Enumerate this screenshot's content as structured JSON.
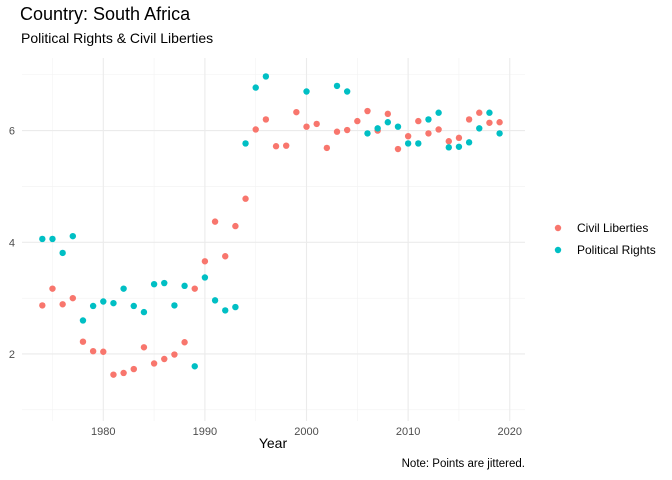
{
  "chart_data": {
    "type": "scatter",
    "title": "Country: South Africa",
    "subtitle": "Political Rights & Civil Liberties",
    "xlabel": "Year",
    "ylabel": "",
    "caption": "Note: Points are jittered.",
    "xlim": [
      1972,
      2021.5
    ],
    "ylim": [
      0.8,
      7.3
    ],
    "x_ticks": [
      1980,
      1990,
      2000,
      2010,
      2020
    ],
    "y_ticks": [
      2,
      4,
      6
    ],
    "grid": true,
    "legend_position": "right",
    "series": [
      {
        "name": "Civil Liberties",
        "color": "#F8766D",
        "points": [
          [
            1974,
            2.87
          ],
          [
            1975,
            3.17
          ],
          [
            1976,
            2.89
          ],
          [
            1977,
            3.0
          ],
          [
            1978,
            2.22
          ],
          [
            1979,
            2.05
          ],
          [
            1980,
            2.04
          ],
          [
            1981,
            1.63
          ],
          [
            1982,
            1.66
          ],
          [
            1983,
            1.73
          ],
          [
            1984,
            2.12
          ],
          [
            1985,
            1.83
          ],
          [
            1986,
            1.91
          ],
          [
            1987,
            1.99
          ],
          [
            1988,
            2.21
          ],
          [
            1989,
            3.17
          ],
          [
            1990,
            3.66
          ],
          [
            1991,
            4.37
          ],
          [
            1992,
            3.75
          ],
          [
            1993,
            4.29
          ],
          [
            1994,
            4.78
          ],
          [
            1995,
            6.02
          ],
          [
            1996,
            6.2
          ],
          [
            1997,
            5.72
          ],
          [
            1998,
            5.73
          ],
          [
            1999,
            6.33
          ],
          [
            2000,
            6.07
          ],
          [
            2001,
            6.12
          ],
          [
            2002,
            5.69
          ],
          [
            2003,
            5.98
          ],
          [
            2004,
            6.01
          ],
          [
            2005,
            6.17
          ],
          [
            2006,
            6.35
          ],
          [
            2007,
            6.0
          ],
          [
            2008,
            6.3
          ],
          [
            2009,
            5.67
          ],
          [
            2010,
            5.9
          ],
          [
            2011,
            6.17
          ],
          [
            2012,
            5.95
          ],
          [
            2013,
            6.02
          ],
          [
            2014,
            5.81
          ],
          [
            2015,
            5.87
          ],
          [
            2016,
            6.2
          ],
          [
            2017,
            6.32
          ],
          [
            2018,
            6.14
          ],
          [
            2019,
            6.15
          ]
        ]
      },
      {
        "name": "Political Rights",
        "color": "#00BFC4",
        "points": [
          [
            1974,
            4.06
          ],
          [
            1975,
            4.06
          ],
          [
            1976,
            3.81
          ],
          [
            1977,
            4.11
          ],
          [
            1978,
            2.6
          ],
          [
            1979,
            2.86
          ],
          [
            1980,
            2.94
          ],
          [
            1981,
            2.91
          ],
          [
            1982,
            3.17
          ],
          [
            1983,
            2.86
          ],
          [
            1984,
            2.75
          ],
          [
            1985,
            3.25
          ],
          [
            1986,
            3.27
          ],
          [
            1987,
            2.87
          ],
          [
            1988,
            3.22
          ],
          [
            1989,
            1.78
          ],
          [
            1990,
            3.37
          ],
          [
            1991,
            2.96
          ],
          [
            1992,
            2.78
          ],
          [
            1993,
            2.84
          ],
          [
            1994,
            5.77
          ],
          [
            1995,
            6.77
          ],
          [
            1996,
            6.97
          ],
          [
            2000,
            6.7
          ],
          [
            2003,
            6.8
          ],
          [
            2004,
            6.7
          ],
          [
            2006,
            5.95
          ],
          [
            2007,
            6.04
          ],
          [
            2008,
            6.15
          ],
          [
            2009,
            6.07
          ],
          [
            2010,
            5.77
          ],
          [
            2011,
            5.77
          ],
          [
            2012,
            6.2
          ],
          [
            2013,
            6.32
          ],
          [
            2014,
            5.7
          ],
          [
            2015,
            5.71
          ],
          [
            2016,
            5.79
          ],
          [
            2017,
            6.04
          ],
          [
            2018,
            6.32
          ],
          [
            2019,
            5.95
          ]
        ]
      }
    ]
  }
}
